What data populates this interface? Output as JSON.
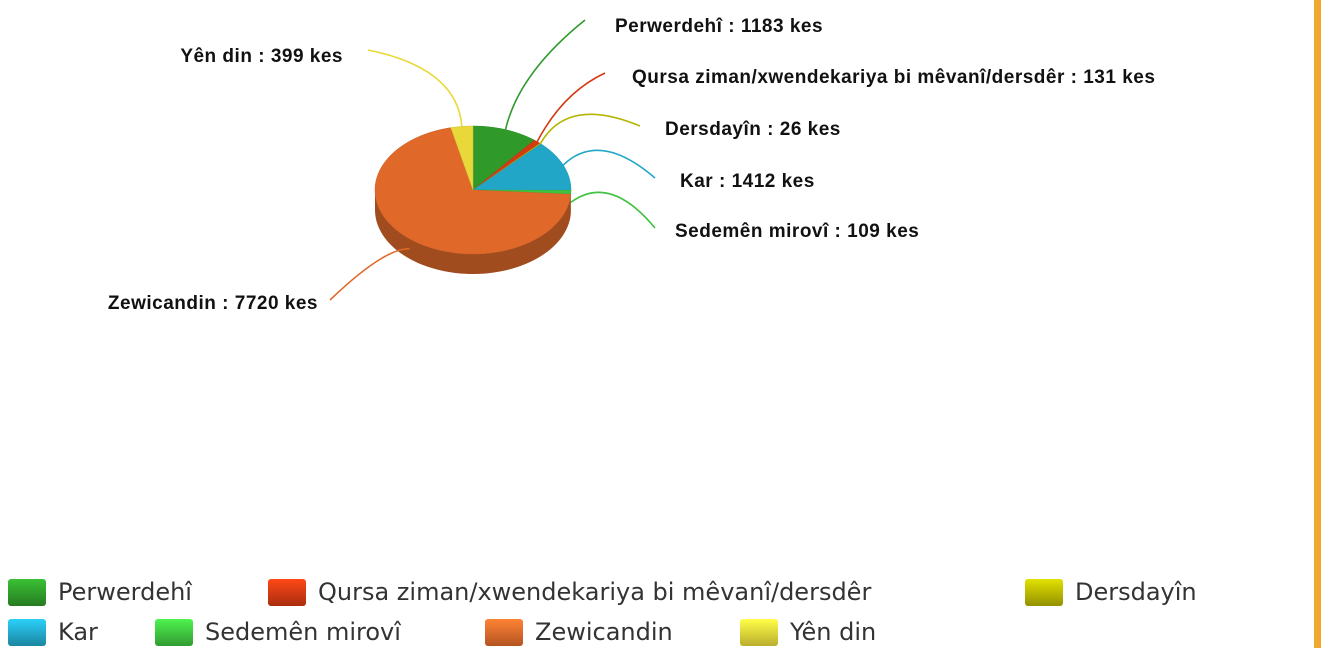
{
  "chart_data": {
    "type": "pie",
    "categories": [
      "Perwerdehî",
      "Qursa ziman/xwendekariya bi mêvanî/dersdêr",
      "Dersdayîn",
      "Kar",
      "Sedemên mirovî",
      "Zewicandin",
      "Yên din"
    ],
    "values": [
      1183,
      131,
      26,
      1412,
      109,
      7720,
      399
    ],
    "value_labels": [
      "Perwerdehî : 1183 kes",
      "Qursa ziman/xwendekariya bi mêvanî/dersdêr : 131 kes",
      "Dersdayîn : 26 kes",
      "Kar : 1412 kes",
      "Sedemên mirovî : 109 kes",
      "Zewicandin : 7720 kes",
      "Yên din : 399 kes"
    ],
    "colors": [
      "#2f9a2a",
      "#d23a12",
      "#b5b400",
      "#22a6c8",
      "#3fc23f",
      "#e0692a",
      "#e9d83a"
    ],
    "legend": "bottom"
  }
}
